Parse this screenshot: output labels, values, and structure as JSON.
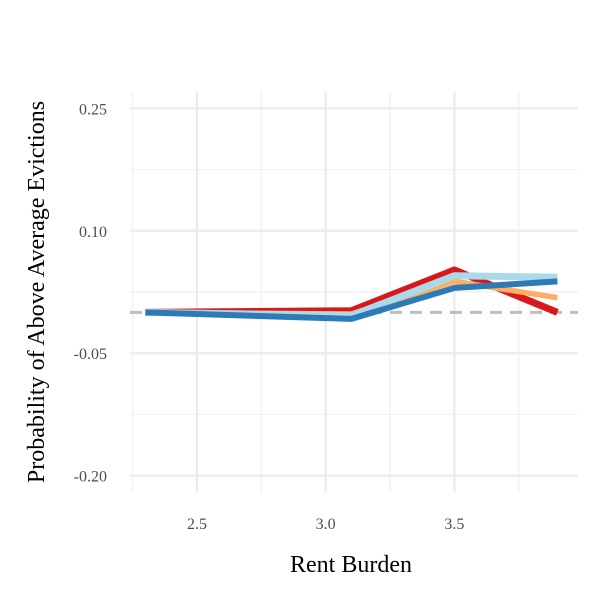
{
  "chart_data": {
    "type": "line",
    "xlabel": "Rent Burden",
    "ylabel": "Probability of Above Average Evictions",
    "xlim": [
      2.24,
      3.98
    ],
    "ylim": [
      -0.22,
      0.27
    ],
    "x_ticks": [
      2.5,
      3.0,
      3.5
    ],
    "x_tick_labels": [
      "2.5",
      "3.0",
      "3.5"
    ],
    "x_minor_ticks": [
      2.25,
      2.75,
      3.25,
      3.75
    ],
    "y_ticks": [
      0.25,
      0.1,
      -0.05,
      -0.2
    ],
    "y_tick_labels": [
      "0.25",
      "0.10",
      "-0.05",
      "-0.20"
    ],
    "y_minor_ticks": [
      0.175,
      0.025,
      -0.125
    ],
    "reference_line": {
      "y": 0.0,
      "style": "dashed",
      "color": "#bdbdbd"
    },
    "grid": true,
    "legend": "none",
    "x": [
      2.3,
      3.1,
      3.5,
      3.9
    ],
    "series": [
      {
        "color": "#d7191c",
        "values": [
          0.0,
          0.002,
          0.052,
          0.0
        ]
      },
      {
        "color": "#fdae61",
        "values": [
          0.0,
          -0.002,
          0.038,
          0.018
        ]
      },
      {
        "color": "#abd9e9",
        "values": [
          0.0,
          -0.004,
          0.045,
          0.043
        ]
      },
      {
        "color": "#2c7bb6",
        "values": [
          0.0,
          -0.008,
          0.03,
          0.038
        ]
      }
    ]
  }
}
